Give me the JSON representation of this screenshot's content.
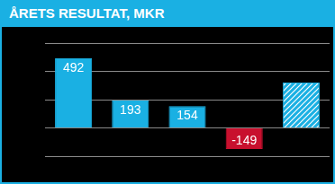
{
  "chart_data": {
    "type": "bar",
    "title": "ÅRETS RESULTAT, MKR",
    "categories": [
      null,
      null,
      null,
      null,
      null
    ],
    "values": [
      492,
      193,
      154,
      -149,
      320
    ],
    "value_labels": [
      "492",
      "193",
      "154",
      "-149",
      null
    ],
    "colors": [
      "#1ab0e3",
      "#1ab0e3",
      "#1ab0e3",
      "#c8102e",
      "#1ab0e3"
    ],
    "ylim": [
      -200,
      600
    ],
    "yticks": [
      -200,
      0,
      200,
      400,
      600
    ],
    "grid": true,
    "data_labels": true,
    "tick_labels": false
  }
}
